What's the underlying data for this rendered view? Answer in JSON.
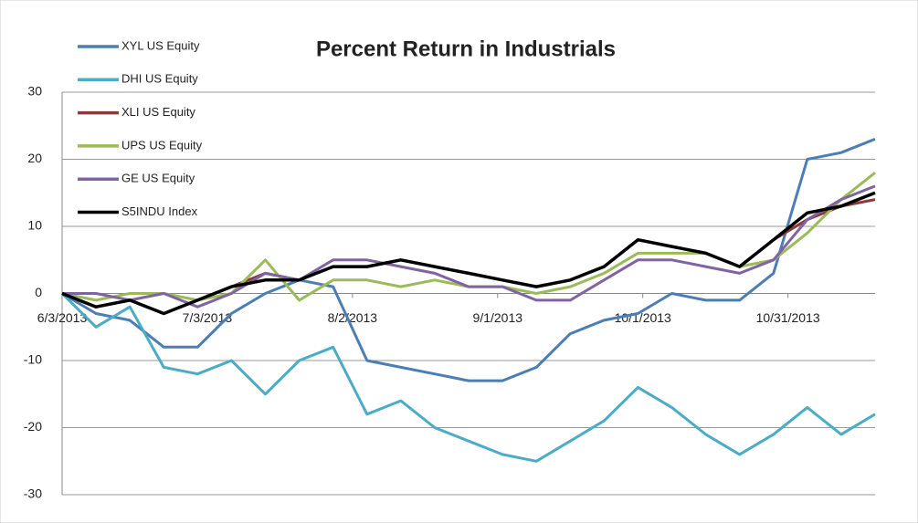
{
  "chart_data": {
    "type": "line",
    "title": "Percent Return in Industrials",
    "x": [
      "2013-06-03",
      "2013-06-10",
      "2013-06-17",
      "2013-06-24",
      "2013-07-01",
      "2013-07-08",
      "2013-07-15",
      "2013-07-22",
      "2013-07-29",
      "2013-08-05",
      "2013-08-12",
      "2013-08-19",
      "2013-08-26",
      "2013-09-02",
      "2013-09-09",
      "2013-09-16",
      "2013-09-23",
      "2013-09-30",
      "2013-10-07",
      "2013-10-14",
      "2013-10-21",
      "2013-10-28",
      "2013-11-04",
      "2013-11-11",
      "2013-11-18"
    ],
    "series": [
      {
        "name": "XYL US Equity",
        "color": "#4a7eb5",
        "values": [
          0,
          -3,
          -4,
          -8,
          -8,
          -3,
          0,
          2,
          1,
          -10,
          -11,
          -12,
          -13,
          -13,
          -11,
          -6,
          -4,
          -3,
          0,
          -1,
          -1,
          3,
          20,
          21,
          23
        ]
      },
      {
        "name": "DHI US Equity",
        "color": "#4bacc6",
        "values": [
          0,
          -5,
          -2,
          -11,
          -12,
          -10,
          -15,
          -10,
          -8,
          -18,
          -16,
          -20,
          -22,
          -24,
          -25,
          -22,
          -19,
          -14,
          -17,
          -21,
          -24,
          -21,
          -17,
          -21,
          -18
        ]
      },
      {
        "name": "XLI US Equity",
        "color": "#8b3a3a",
        "values": [
          0,
          -2,
          -1,
          -3,
          -1,
          1,
          3,
          2,
          4,
          4,
          5,
          4,
          3,
          2,
          1,
          2,
          4,
          8,
          7,
          6,
          4,
          8,
          11,
          13,
          14
        ]
      },
      {
        "name": "UPS US Equity",
        "color": "#9bbb59",
        "values": [
          0,
          -1,
          0,
          0,
          -1,
          0,
          5,
          -1,
          2,
          2,
          1,
          2,
          1,
          1,
          0,
          1,
          3,
          6,
          6,
          6,
          4,
          5,
          9,
          14,
          18
        ]
      },
      {
        "name": "GE US Equity",
        "color": "#8064a2",
        "values": [
          0,
          0,
          -1,
          0,
          -2,
          0,
          3,
          2,
          5,
          5,
          4,
          3,
          1,
          1,
          -1,
          -1,
          2,
          5,
          5,
          4,
          3,
          5,
          11,
          14,
          16
        ]
      },
      {
        "name": "S5INDU Index",
        "color": "#000000",
        "values": [
          0,
          -2,
          -1,
          -3,
          -1,
          1,
          2,
          2,
          4,
          4,
          5,
          4,
          3,
          2,
          1,
          2,
          4,
          8,
          7,
          6,
          4,
          8,
          12,
          13,
          15
        ]
      }
    ],
    "xlim": [
      "2013-06-03",
      "2013-11-18"
    ],
    "xticks": [
      {
        "value": "2013-06-03",
        "label": "6/3/2013"
      },
      {
        "value": "2013-07-03",
        "label": "7/3/2013"
      },
      {
        "value": "2013-08-02",
        "label": "8/2/2013"
      },
      {
        "value": "2013-09-01",
        "label": "9/1/2013"
      },
      {
        "value": "2013-10-01",
        "label": "10/1/2013"
      },
      {
        "value": "2013-10-31",
        "label": "10/31/2013"
      }
    ],
    "ylim": [
      -30,
      30
    ],
    "yticks": [
      -30,
      -20,
      -10,
      0,
      10,
      20,
      30
    ],
    "grid": true
  }
}
